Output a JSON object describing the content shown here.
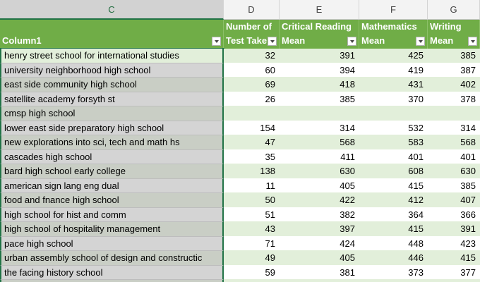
{
  "column_letters": [
    "C",
    "D",
    "E",
    "F",
    "G"
  ],
  "headers": [
    [
      "Column1"
    ],
    [
      "Number of",
      "Test Take"
    ],
    [
      "Critical Reading",
      "Mean"
    ],
    [
      "Mathematics",
      "Mean"
    ],
    [
      "Writing",
      "Mean"
    ]
  ],
  "rows": [
    [
      "henry street school for international studies",
      32,
      391,
      425,
      385
    ],
    [
      "university neighborhood high school",
      60,
      394,
      419,
      387
    ],
    [
      "east side community high school",
      69,
      418,
      431,
      402
    ],
    [
      "satellite academy forsyth st",
      26,
      385,
      370,
      378
    ],
    [
      "cmsp high school",
      null,
      null,
      null,
      null
    ],
    [
      "lower east side preparatory high school",
      154,
      314,
      532,
      314
    ],
    [
      "new explorations into sci, tech and math hs",
      47,
      568,
      583,
      568
    ],
    [
      "cascades high school",
      35,
      411,
      401,
      401
    ],
    [
      "bard high school early college",
      138,
      630,
      608,
      630
    ],
    [
      "american sign lang eng dual",
      11,
      405,
      415,
      385
    ],
    [
      "food and fnance high school",
      50,
      422,
      412,
      407
    ],
    [
      "high school for hist and comm",
      51,
      382,
      364,
      366
    ],
    [
      "high school of hospitality management",
      43,
      397,
      415,
      391
    ],
    [
      "pace high school",
      71,
      424,
      448,
      423
    ],
    [
      "urban assembly school of design and constructic",
      49,
      405,
      446,
      415
    ],
    [
      "the facing history school",
      59,
      381,
      373,
      377
    ]
  ]
}
